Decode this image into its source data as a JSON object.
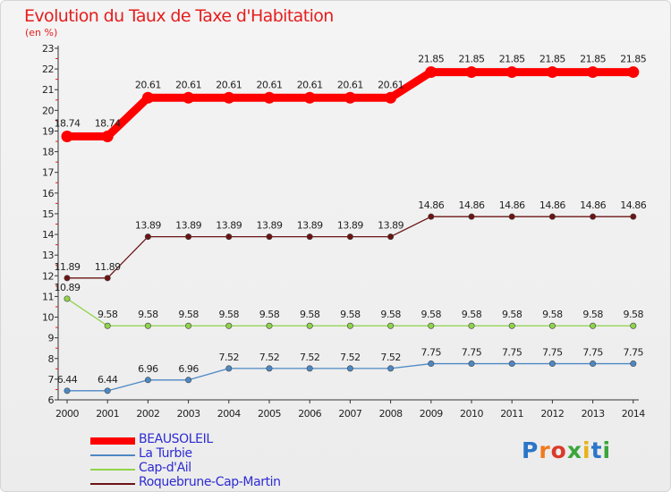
{
  "title": "Evolution du Taux de Taxe d'Habitation",
  "subtitle": "(en %)",
  "logo": {
    "text": "Proxiti",
    "colors": [
      "#2a76c9",
      "#f07a1c",
      "#d93a2b",
      "#3aa63a",
      "#e8b21a",
      "#2a76c9",
      "#3aa63a"
    ]
  },
  "chart_data": {
    "type": "line",
    "x": [
      2000,
      2001,
      2002,
      2003,
      2004,
      2005,
      2006,
      2007,
      2008,
      2009,
      2010,
      2011,
      2012,
      2013,
      2014
    ],
    "ylim": [
      6,
      23
    ],
    "yticks": [
      6,
      7,
      8,
      9,
      10,
      11,
      12,
      13,
      14,
      15,
      16,
      17,
      18,
      19,
      20,
      21,
      22,
      23
    ],
    "grid": false,
    "legend_position": "bottom-left",
    "series": [
      {
        "name": "BEAUSOLEIL",
        "color": "#ff0000",
        "values": [
          18.74,
          18.74,
          20.61,
          20.61,
          20.61,
          20.61,
          20.61,
          20.61,
          20.61,
          21.85,
          21.85,
          21.85,
          21.85,
          21.85,
          21.85
        ],
        "labels": [
          "18.74",
          "18.74",
          "20.61",
          "20.61",
          "20.61",
          "20.61",
          "20.61",
          "20.61",
          "20.61",
          "21.85",
          "21.85",
          "21.85",
          "21.85",
          "21.85",
          "21.85"
        ]
      },
      {
        "name": "La Turbie",
        "color": "#4d88c4",
        "values": [
          6.44,
          6.44,
          6.96,
          6.96,
          7.52,
          7.52,
          7.52,
          7.52,
          7.52,
          7.75,
          7.75,
          7.75,
          7.75,
          7.75,
          7.75
        ],
        "labels": [
          "6.44",
          "6.44",
          "6.96",
          "6.96",
          "7.52",
          "7.52",
          "7.52",
          "7.52",
          "7.52",
          "7.75",
          "7.75",
          "7.75",
          "7.75",
          "7.75",
          "7.75"
        ]
      },
      {
        "name": "Cap-d'Ail",
        "color": "#8ed34a",
        "values": [
          10.89,
          9.58,
          9.58,
          9.58,
          9.58,
          9.58,
          9.58,
          9.58,
          9.58,
          9.58,
          9.58,
          9.58,
          9.58,
          9.58,
          9.58
        ],
        "labels": [
          "10.89",
          "9.58",
          "9.58",
          "9.58",
          "9.58",
          "9.58",
          "9.58",
          "9.58",
          "9.58",
          "9.58",
          "9.58",
          "9.58",
          "9.58",
          "9.58",
          "9.58"
        ]
      },
      {
        "name": "Roquebrune-Cap-Martin",
        "color": "#6b1414",
        "values": [
          11.89,
          11.89,
          13.89,
          13.89,
          13.89,
          13.89,
          13.89,
          13.89,
          13.89,
          14.86,
          14.86,
          14.86,
          14.86,
          14.86,
          14.86
        ],
        "labels": [
          "11.89",
          "11.89",
          "13.89",
          "13.89",
          "13.89",
          "13.89",
          "13.89",
          "13.89",
          "13.89",
          "14.86",
          "14.86",
          "14.86",
          "14.86",
          "14.86",
          "14.86"
        ]
      }
    ]
  }
}
